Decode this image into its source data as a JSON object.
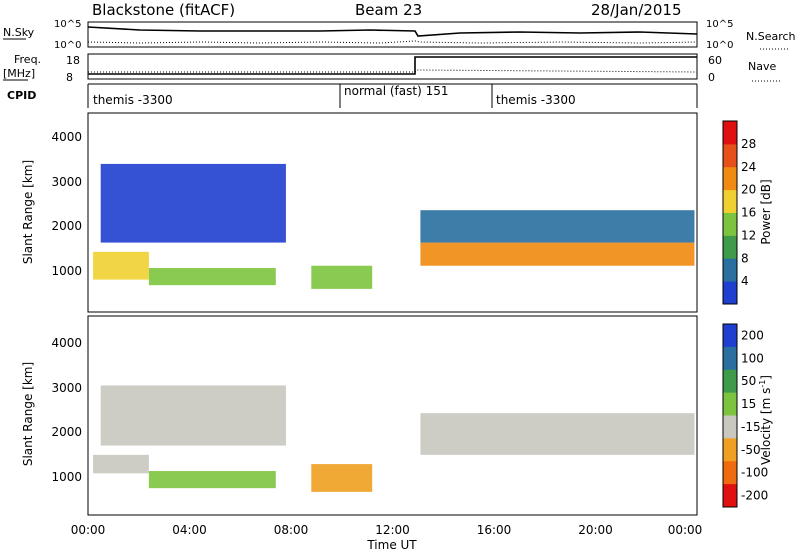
{
  "header": {
    "title": "Blackstone (fitACF)",
    "beam": "Beam 23",
    "date": "28/Jan/2015"
  },
  "summary": {
    "nsky_label": "N.Sky",
    "nsearch_label": "N.Search",
    "freq_label": "Freq.",
    "freq_unit": "[MHz]",
    "nave_label": "Nave",
    "cpid_label": "CPID",
    "nsky_ticks": [
      "10^5",
      "10^0"
    ],
    "nsearch_ticks": [
      "10^5",
      "10^0"
    ],
    "freq_ticks": [
      "18",
      "8"
    ],
    "nave_ticks": [
      "60",
      "0"
    ]
  },
  "cpid_segments": [
    {
      "label": "themis -3300"
    },
    {
      "label": "normal (fast) 151"
    },
    {
      "label": "themis -3300"
    }
  ],
  "chart_data": [
    {
      "type": "heatmap",
      "name": "power",
      "ylabel": "Slant Range [km]",
      "xlabel": "",
      "ylim": [
        200,
        4500
      ],
      "yticks": [
        "1000",
        "2000",
        "3000",
        "4000"
      ],
      "colorbar_label": "Power [dB]",
      "colorbar_ticks": [
        "4",
        "8",
        "12",
        "16",
        "20",
        "24",
        "28"
      ],
      "colors": [
        "#1f3fd0",
        "#2a6fa0",
        "#3f9a4a",
        "#7cc43e",
        "#f0d030",
        "#f08a10",
        "#e8501a",
        "#e01010"
      ],
      "bands": [
        {
          "t0": 0.2,
          "t1": 2.4,
          "r0": 900,
          "r1": 1500,
          "level": 4
        },
        {
          "t0": 2.4,
          "t1": 7.4,
          "r0": 780,
          "r1": 1150,
          "level": 3
        },
        {
          "t0": 0.5,
          "t1": 7.8,
          "r0": 1700,
          "r1": 3400,
          "level": 0
        },
        {
          "t0": 8.8,
          "t1": 11.2,
          "r0": 700,
          "r1": 1200,
          "level": 3
        },
        {
          "t0": 13.1,
          "t1": 23.9,
          "r0": 1200,
          "r1": 1700,
          "level": 5
        },
        {
          "t0": 13.1,
          "t1": 23.9,
          "r0": 1700,
          "r1": 2400,
          "level": 1
        }
      ]
    },
    {
      "type": "heatmap",
      "name": "velocity",
      "ylabel": "Slant Range [km]",
      "xlabel": "Time UT",
      "ylim": [
        200,
        4500
      ],
      "yticks": [
        "1000",
        "2000",
        "3000",
        "4000"
      ],
      "xticks": [
        "00:00",
        "04:00",
        "08:00",
        "12:00",
        "16:00",
        "20:00",
        "00:00"
      ],
      "colorbar_label": "Velocity [m s",
      "colorbar_label_sup": "-1",
      "colorbar_label_end": "]",
      "colorbar_ticks": [
        "200",
        "100",
        "50",
        "15",
        "-15",
        "-50",
        "-100",
        "-200"
      ],
      "colors": [
        "#1f3fd0",
        "#2a6fa0",
        "#3f9a4a",
        "#7cc43e",
        "#c8c8c0",
        "#f0a020",
        "#f06a10",
        "#e01010"
      ],
      "bands": [
        {
          "t0": 0.2,
          "t1": 2.4,
          "r0": 1100,
          "r1": 1500,
          "level": 4
        },
        {
          "t0": 2.4,
          "t1": 7.4,
          "r0": 780,
          "r1": 1150,
          "level": 3
        },
        {
          "t0": 0.5,
          "t1": 7.8,
          "r0": 1700,
          "r1": 3000,
          "level": 4
        },
        {
          "t0": 8.8,
          "t1": 11.2,
          "r0": 700,
          "r1": 1300,
          "level": 5
        },
        {
          "t0": 13.1,
          "t1": 23.9,
          "r0": 1500,
          "r1": 2400,
          "level": 4
        }
      ]
    }
  ]
}
